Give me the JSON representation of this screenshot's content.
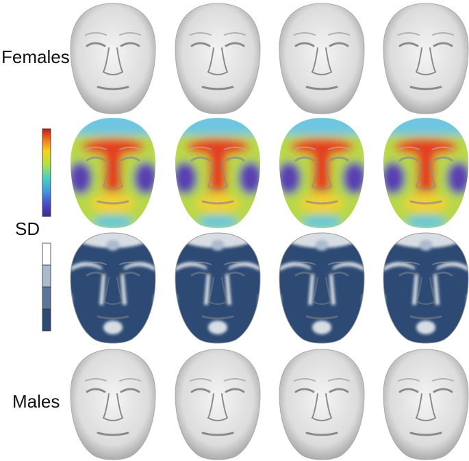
{
  "labels": {
    "females": "Females",
    "sd": "SD",
    "males": "Males"
  }
}
